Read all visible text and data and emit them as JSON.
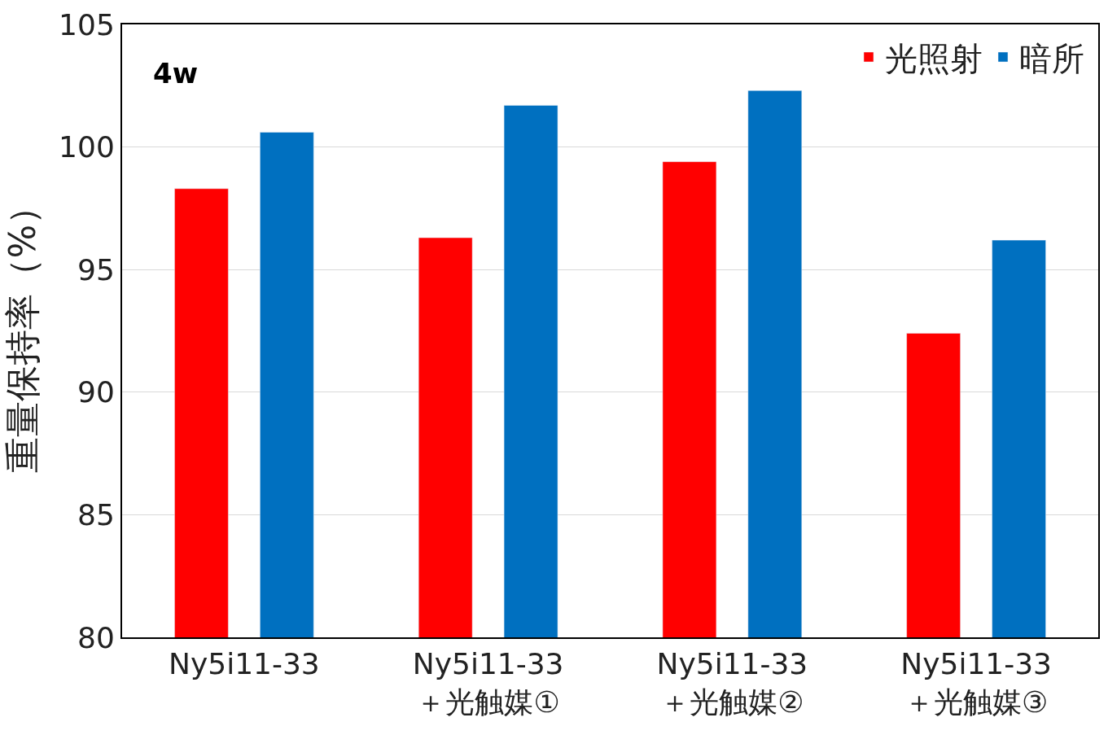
{
  "chart_data": {
    "type": "bar",
    "ylabel": "重量保持率（%）",
    "categories": [
      "Ny5i11-33",
      "Ny5i11-33\n＋光触媒①",
      "Ny5i11-33\n＋光触媒②",
      "Ny5i11-33\n＋光触媒③"
    ],
    "series": [
      {
        "name": "光照射",
        "color": "#ff0000",
        "values": [
          98.3,
          96.3,
          99.4,
          92.4
        ]
      },
      {
        "name": "暗所",
        "color": "#0070c0",
        "values": [
          100.6,
          101.7,
          102.3,
          96.2
        ]
      }
    ],
    "ylim": [
      80,
      105
    ],
    "yticks": [
      80,
      85,
      90,
      95,
      100,
      105
    ],
    "grid": "y",
    "legend": "top right",
    "annotations": [
      "4w"
    ]
  }
}
